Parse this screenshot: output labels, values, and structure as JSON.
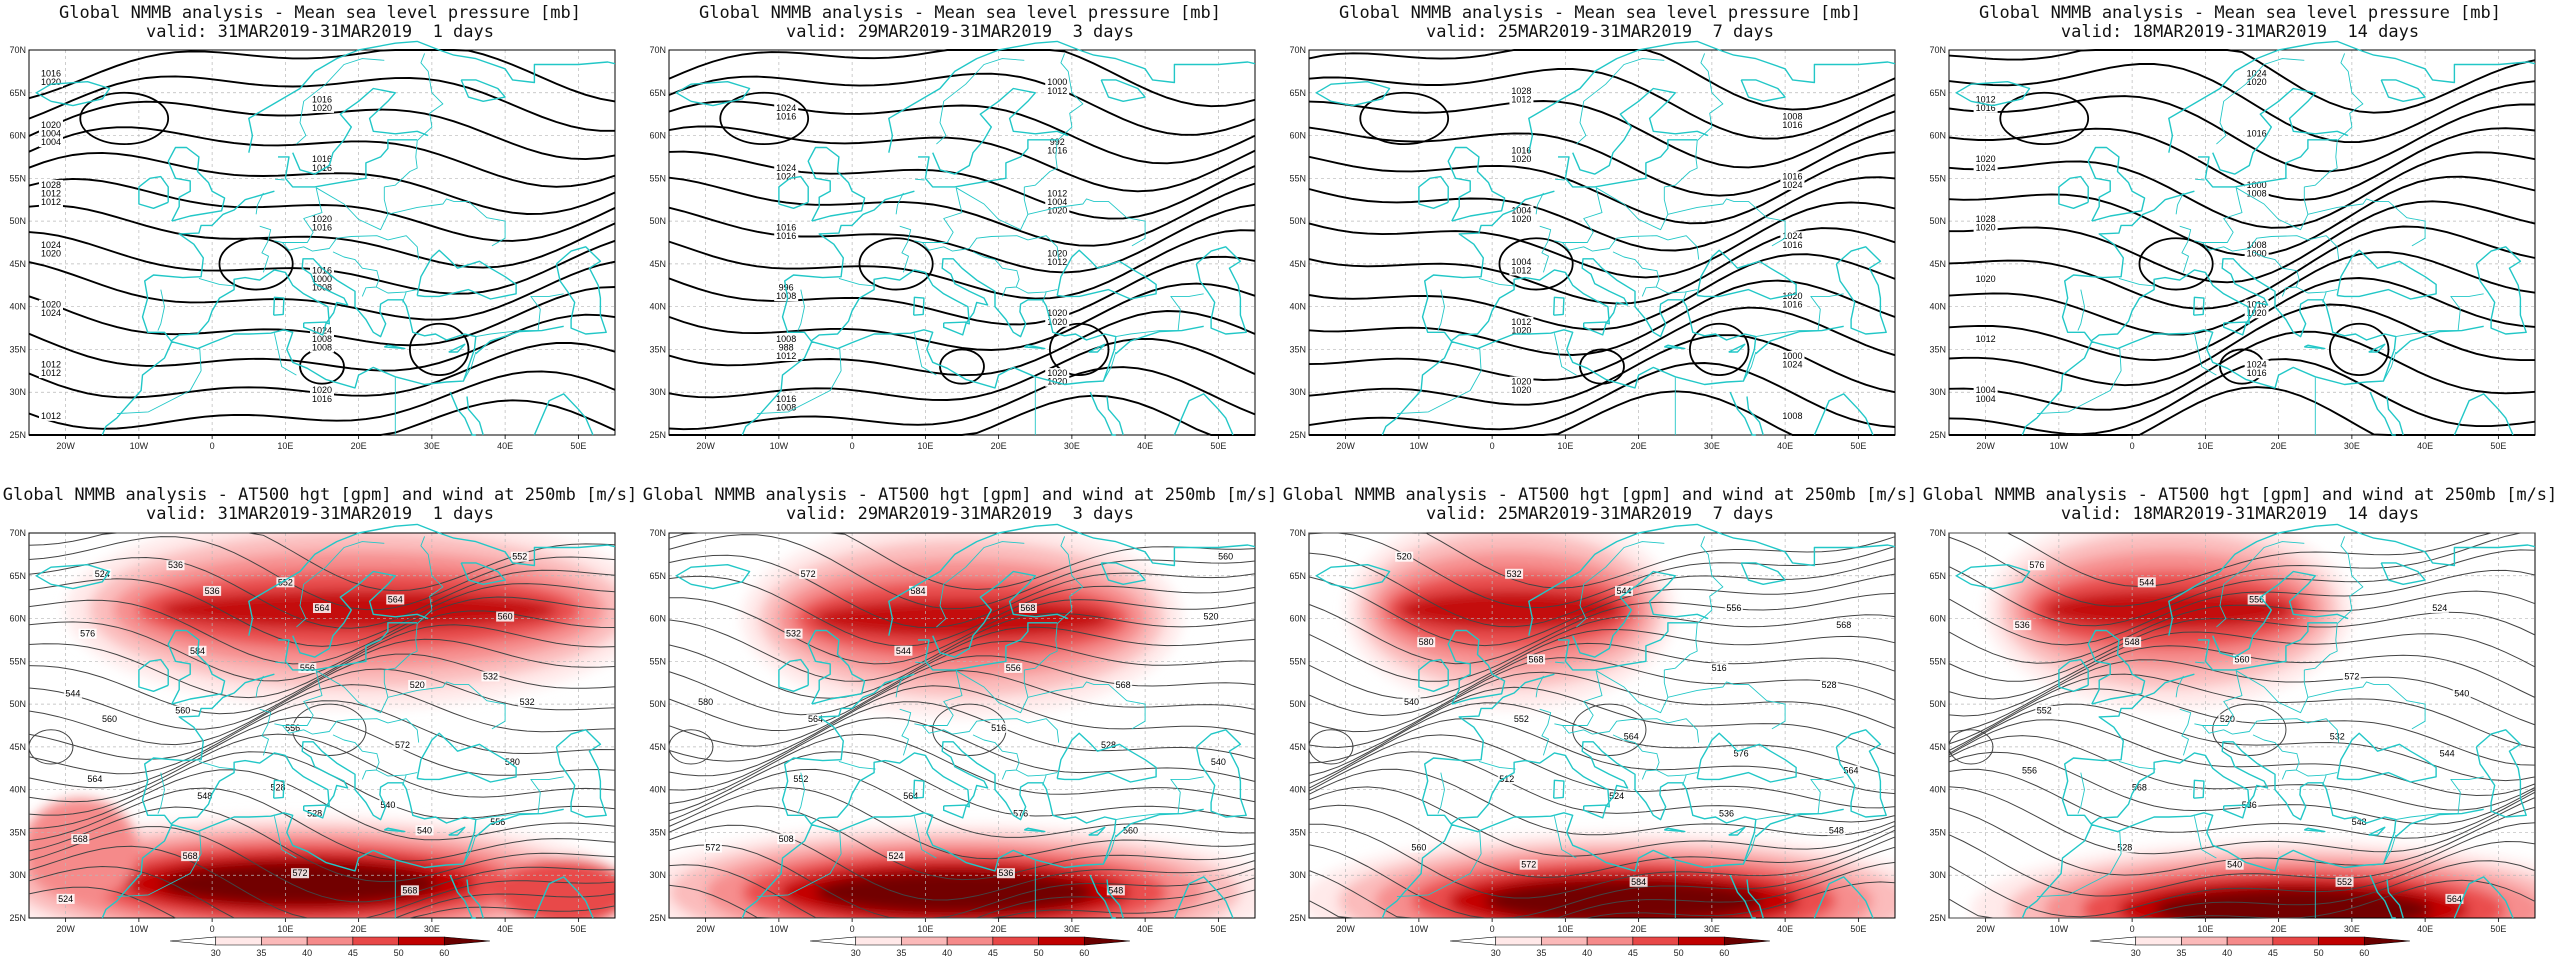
{
  "axes": {
    "lon_labels": [
      "20W",
      "10W",
      "0",
      "10E",
      "20E",
      "30E",
      "40E",
      "50E"
    ],
    "lat_labels": [
      "70N",
      "65N",
      "60N",
      "55N",
      "50N",
      "45N",
      "40N",
      "35N",
      "30N",
      "25N"
    ],
    "lon_range": [
      -25,
      55
    ],
    "lat_range": [
      25,
      70
    ]
  },
  "colors": {
    "coast": "#22c7c7",
    "pressure_line": "#000000",
    "height_line": "#444444",
    "wind_scale": [
      "#ffe8e8",
      "#fbb9b9",
      "#f58a8a",
      "#e84848",
      "#c00000",
      "#6a0000"
    ]
  },
  "top_title": "Global NMMB analysis - Mean sea level pressure [mb]",
  "bottom_title": "Global NMMB analysis - AT500 hgt [gpm] and wind at 250mb [m/s]",
  "colorbar": {
    "ticks": [
      "30",
      "35",
      "40",
      "45",
      "50",
      "60"
    ]
  },
  "panels": [
    {
      "valid": "valid: 31MAR2019-31MAR2019  1 days",
      "pressure_labels": [
        "1012",
        "1016",
        "1020",
        "1024",
        "1028",
        "1020",
        "1024",
        "1016",
        "1020",
        "1016",
        "1012",
        "1020",
        "1016",
        "1000",
        "1004",
        "1008",
        "1012",
        "1016",
        "1020",
        "1020",
        "1024",
        "1016",
        "1012",
        "1016",
        "1020",
        "1008",
        "1004",
        "1008",
        "1012"
      ],
      "height_labels": [
        "524",
        "528",
        "532",
        "536",
        "540",
        "544",
        "552",
        "556",
        "560",
        "564",
        "568",
        "556",
        "560",
        "568",
        "572",
        "576",
        "572",
        "580",
        "584",
        "568",
        "564",
        "556",
        "552",
        "548",
        "520",
        "524",
        "528",
        "532",
        "536",
        "540",
        "560",
        "564"
      ]
    },
    {
      "valid": "valid: 29MAR2019-31MAR2019  3 days",
      "pressure_labels": [
        "1008",
        "1012",
        "1016",
        "1020",
        "1024",
        "1020",
        "1024",
        "1020",
        "1016",
        "1000",
        "996",
        "992",
        "988",
        "1004",
        "1008",
        "1012",
        "1016",
        "1020",
        "1024",
        "1020",
        "1016",
        "1012",
        "1008",
        "1016",
        "1012",
        "1020"
      ],
      "height_labels": [
        "508",
        "516",
        "520",
        "524",
        "528",
        "532",
        "536",
        "540",
        "544",
        "548",
        "552",
        "556",
        "560",
        "564",
        "568",
        "572",
        "576",
        "580",
        "584",
        "560",
        "564",
        "568",
        "572"
      ]
    },
    {
      "valid": "valid: 25MAR2019-31MAR2019  7 days",
      "pressure_labels": [
        "1004",
        "1008",
        "1012",
        "1016",
        "1020",
        "1024",
        "1028",
        "1020",
        "1016",
        "1000",
        "1004",
        "1008",
        "1012",
        "1016",
        "1020",
        "1024",
        "1020",
        "1016",
        "1012",
        "1016",
        "1020",
        "1024",
        "1020"
      ],
      "height_labels": [
        "512",
        "516",
        "520",
        "524",
        "528",
        "532",
        "536",
        "540",
        "544",
        "548",
        "552",
        "556",
        "560",
        "564",
        "568",
        "572",
        "576",
        "580",
        "584",
        "564",
        "568"
      ]
    },
    {
      "valid": "valid: 18MAR2019-31MAR2019  14 days",
      "pressure_labels": [
        "1000",
        "1004",
        "1008",
        "1012",
        "1016",
        "1020",
        "1024",
        "1028",
        "1024",
        "1020",
        "1016",
        "1012",
        "1008",
        "1004",
        "1000",
        "1016",
        "1020",
        "1024",
        "1016",
        "1020",
        "1020"
      ],
      "height_labels": [
        "520",
        "524",
        "528",
        "532",
        "536",
        "540",
        "544",
        "548",
        "552",
        "556",
        "560",
        "564",
        "568",
        "572",
        "576",
        "536",
        "540",
        "544",
        "548",
        "552",
        "556"
      ]
    }
  ]
}
